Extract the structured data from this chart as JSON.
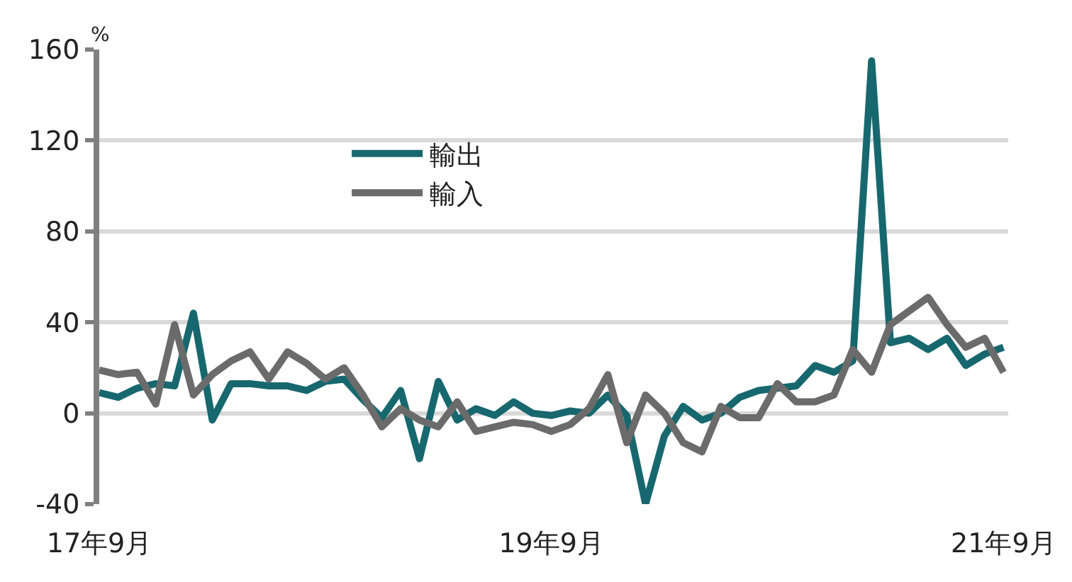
{
  "chart_data": {
    "type": "line",
    "ylabel": "%",
    "categories": [
      "17年9月",
      null,
      null,
      null,
      null,
      null,
      null,
      null,
      null,
      null,
      null,
      null,
      null,
      null,
      null,
      null,
      null,
      null,
      null,
      null,
      null,
      null,
      null,
      null,
      "19年9月",
      null,
      null,
      null,
      null,
      null,
      null,
      null,
      null,
      null,
      null,
      null,
      null,
      null,
      null,
      null,
      null,
      null,
      null,
      null,
      null,
      null,
      null,
      null,
      "21年9月"
    ],
    "series": [
      {
        "name": "輸出",
        "color": "#17686e",
        "values": [
          9,
          7,
          11,
          13,
          12,
          44,
          -3,
          13,
          13,
          12,
          12,
          10,
          14,
          15,
          6,
          -2,
          10,
          -20,
          14,
          -3,
          2,
          -1,
          5,
          0,
          -1,
          1,
          0,
          8,
          -1,
          -40,
          -10,
          3,
          -3,
          0,
          7,
          10,
          11,
          12,
          21,
          18,
          23,
          155,
          31,
          33,
          28,
          33,
          21,
          26,
          29
        ]
      },
      {
        "name": "輸入",
        "color": "#6b6b6b",
        "values": [
          19,
          17,
          18,
          4,
          39,
          8,
          17,
          23,
          27,
          15,
          27,
          22,
          15,
          20,
          8,
          -6,
          2,
          -3,
          -6,
          5,
          -8,
          -6,
          -4,
          -5,
          -8,
          -5,
          2,
          17,
          -13,
          8,
          0,
          -13,
          -17,
          3,
          -2,
          -2,
          13,
          5,
          5,
          8,
          28,
          18,
          39,
          45,
          51,
          39,
          29,
          33,
          18
        ]
      }
    ],
    "ylim": [
      -40,
      160
    ],
    "yticks": [
      -40,
      0,
      40,
      80,
      120,
      160
    ],
    "grid": "y",
    "legend": "top left",
    "line_style": "solid",
    "marker": "none"
  }
}
